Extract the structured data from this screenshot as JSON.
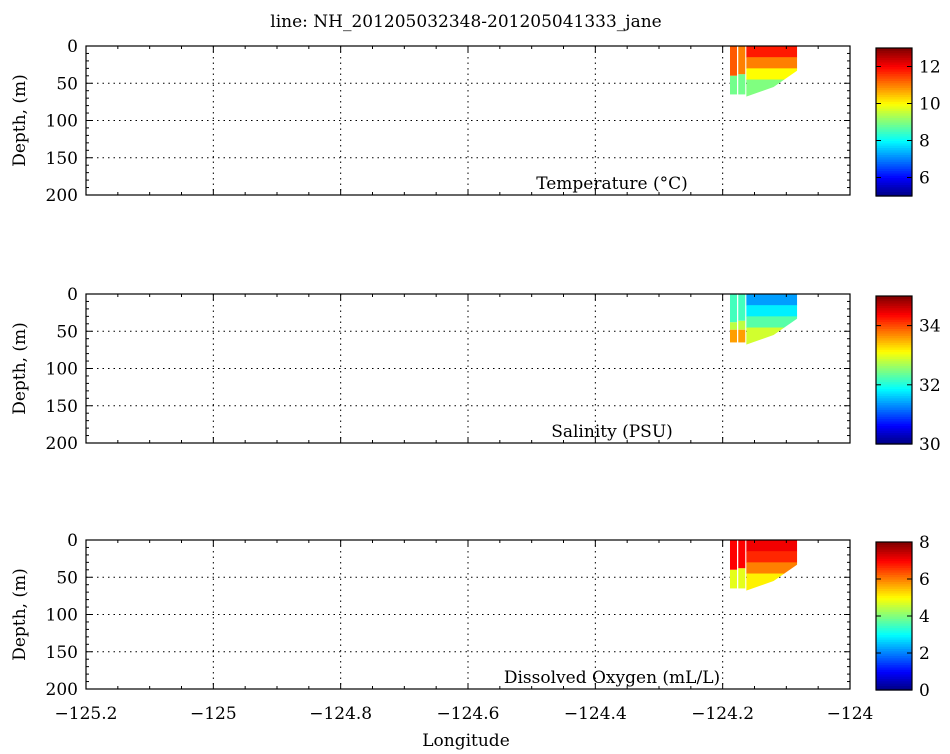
{
  "title": "line: NH_201205032348-201205041333_jane",
  "xlabel": "Longitude",
  "x_ticks": [
    -125.2,
    -125,
    -124.8,
    -124.6,
    -124.4,
    -124.2,
    -124
  ],
  "x_tick_labels": [
    "−125.2",
    "−125",
    "−124.8",
    "−124.6",
    "−124.4",
    "−124.2",
    "−124"
  ],
  "colormap": "jet",
  "chart_data": [
    {
      "type": "heatmap",
      "label": "Temperature (°C)",
      "ylabel": "Depth, (m)",
      "xlim": [
        -125.2,
        -124.0
      ],
      "ylim": [
        200,
        0
      ],
      "y_ticks": [
        0,
        50,
        100,
        150,
        200
      ],
      "grid": true,
      "colorbar": {
        "range": [
          5,
          13
        ],
        "ticks": [
          6,
          8,
          10,
          12
        ]
      },
      "profiles": [
        {
          "lon": -124.183,
          "z_end": 65,
          "seg": [
            [
              0,
              40,
              11.3
            ],
            [
              40,
              65,
              8.9
            ]
          ]
        },
        {
          "lon": -124.17,
          "z_end": 65,
          "seg": [
            [
              0,
              38,
              11.0
            ],
            [
              38,
              65,
              8.9
            ]
          ]
        }
      ],
      "section": {
        "lon_start": -124.163,
        "lon_end": -124.083,
        "bottom": [
          [
            -124.163,
            68
          ],
          [
            -124.12,
            55
          ],
          [
            -124.083,
            33
          ]
        ],
        "bands": [
          {
            "z": [
              0,
              15
            ],
            "value": 11.8
          },
          {
            "z": [
              15,
              30
            ],
            "value": 11.0
          },
          {
            "z": [
              30,
              45
            ],
            "value": 10.0
          },
          {
            "z": [
              45,
              70
            ],
            "value": 9.0
          }
        ]
      }
    },
    {
      "type": "heatmap",
      "label": "Salinity (PSU)",
      "ylabel": "Depth, (m)",
      "xlim": [
        -125.2,
        -124.0
      ],
      "ylim": [
        200,
        0
      ],
      "y_ticks": [
        0,
        50,
        100,
        150,
        200
      ],
      "grid": true,
      "colorbar": {
        "range": [
          30,
          35
        ],
        "ticks": [
          30,
          32,
          34
        ]
      },
      "profiles": [
        {
          "lon": -124.183,
          "z_end": 65,
          "seg": [
            [
              0,
              38,
              32.2
            ],
            [
              38,
              48,
              32.8
            ],
            [
              48,
              65,
              33.6
            ]
          ]
        },
        {
          "lon": -124.17,
          "z_end": 65,
          "seg": [
            [
              0,
              36,
              32.2
            ],
            [
              36,
              48,
              32.8
            ],
            [
              48,
              65,
              33.6
            ]
          ]
        }
      ],
      "section": {
        "lon_start": -124.163,
        "lon_end": -124.083,
        "bottom": [
          [
            -124.163,
            68
          ],
          [
            -124.12,
            55
          ],
          [
            -124.083,
            33
          ]
        ],
        "bands": [
          {
            "z": [
              0,
              15
            ],
            "value": 31.4
          },
          {
            "z": [
              15,
              30
            ],
            "value": 31.8
          },
          {
            "z": [
              30,
              45
            ],
            "value": 32.3
          },
          {
            "z": [
              45,
              70
            ],
            "value": 32.9
          }
        ]
      }
    },
    {
      "type": "heatmap",
      "label": "Dissolved Oxygen (mL/L)",
      "ylabel": "Depth, (m)",
      "xlim": [
        -125.2,
        -124.0
      ],
      "ylim": [
        200,
        0
      ],
      "y_ticks": [
        0,
        50,
        100,
        150,
        200
      ],
      "grid": true,
      "colorbar": {
        "range": [
          0,
          8
        ],
        "ticks": [
          0,
          2,
          4,
          6,
          8
        ]
      },
      "profiles": [
        {
          "lon": -124.183,
          "z_end": 65,
          "seg": [
            [
              0,
              40,
              7.0
            ],
            [
              40,
              65,
              4.8
            ]
          ]
        },
        {
          "lon": -124.17,
          "z_end": 65,
          "seg": [
            [
              0,
              38,
              7.0
            ],
            [
              38,
              65,
              4.8
            ]
          ]
        }
      ],
      "section": {
        "lon_start": -124.163,
        "lon_end": -124.083,
        "bottom": [
          [
            -124.163,
            68
          ],
          [
            -124.12,
            55
          ],
          [
            -124.083,
            33
          ]
        ],
        "bands": [
          {
            "z": [
              0,
              15
            ],
            "value": 7.1
          },
          {
            "z": [
              15,
              30
            ],
            "value": 6.7
          },
          {
            "z": [
              30,
              45
            ],
            "value": 6.0
          },
          {
            "z": [
              45,
              70
            ],
            "value": 5.1
          }
        ]
      }
    }
  ]
}
